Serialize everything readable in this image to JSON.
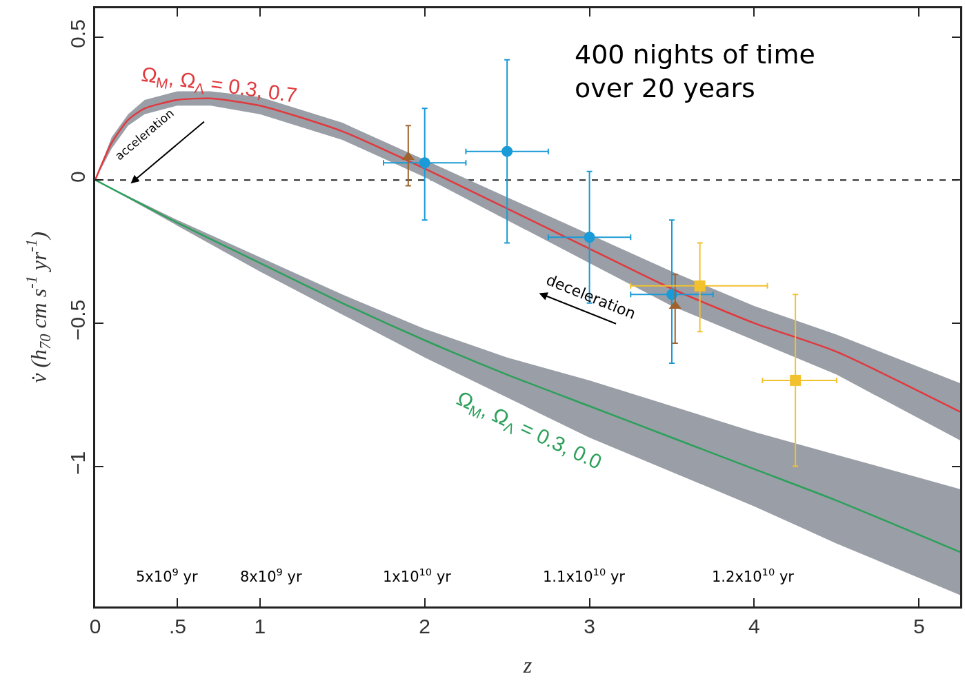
{
  "chart_data": {
    "type": "line",
    "title": "400 nights of time over 20 years",
    "xlabel": "z",
    "ylabel": "v̇ (h$_{70}$ cm s$^{-1}$ yr$^{-1}$)",
    "xlim": [
      0,
      5.25
    ],
    "ylim": [
      -1.49,
      0.6
    ],
    "xticks": [
      0,
      {
        "value": 0.5,
        "label": ".5"
      },
      1,
      2,
      3,
      4,
      5
    ],
    "yticks": [
      {
        "value": -1,
        "label": "−1"
      },
      {
        "value": -0.5,
        "label": "−0.5"
      },
      0,
      0.5
    ],
    "grid": false,
    "ref_lines": [
      {
        "axis": "y",
        "value": 0,
        "label": null,
        "color": "#222222",
        "line_style": "dashed"
      }
    ],
    "series": [
      {
        "color": "#e0393e",
        "x": [
          0,
          0.1,
          0.2,
          0.3,
          0.5,
          0.7,
          1.0,
          1.5,
          2.0,
          3.0,
          3.5,
          4.0,
          4.5,
          5.25
        ],
        "values": [
          0,
          0.13,
          0.21,
          0.25,
          0.28,
          0.285,
          0.26,
          0.17,
          0.04,
          -0.24,
          -0.38,
          -0.5,
          -0.6,
          -0.81
        ],
        "lower": [
          0,
          0.11,
          0.19,
          0.23,
          0.26,
          0.26,
          0.23,
          0.14,
          0.01,
          -0.29,
          -0.44,
          -0.56,
          -0.68,
          -0.91
        ],
        "upper": [
          0,
          0.15,
          0.23,
          0.28,
          0.31,
          0.31,
          0.29,
          0.2,
          0.07,
          -0.19,
          -0.32,
          -0.44,
          -0.54,
          -0.71
        ]
      },
      {
        "color": "#2ca05a",
        "x": [
          0,
          0.5,
          1.0,
          1.5,
          2.0,
          2.5,
          3.0,
          3.5,
          4.0,
          4.5,
          5.25
        ],
        "values": [
          0,
          -0.15,
          -0.29,
          -0.43,
          -0.56,
          -0.68,
          -0.79,
          -0.9,
          -1.01,
          -1.12,
          -1.3
        ],
        "lower": [
          0,
          -0.16,
          -0.32,
          -0.47,
          -0.62,
          -0.76,
          -0.9,
          -1.02,
          -1.14,
          -1.27,
          -1.45
        ],
        "upper": [
          0,
          -0.14,
          -0.27,
          -0.4,
          -0.52,
          -0.62,
          -0.7,
          -0.79,
          -0.88,
          -0.96,
          -1.08
        ]
      },
      {
        "type": "scatter",
        "color": "#1a9ad6",
        "marker": "circle",
        "x": [
          2.0,
          2.5,
          3.0,
          3.5
        ],
        "values": [
          0.06,
          0.1,
          -0.2,
          -0.4
        ],
        "errors": [
          [
            -0.14,
            0.25
          ],
          [
            -0.22,
            0.42
          ],
          [
            -0.43,
            0.03
          ],
          [
            -0.64,
            -0.14
          ]
        ],
        "xerrors": [
          [
            1.75,
            2.25
          ],
          [
            2.25,
            2.75
          ],
          [
            2.75,
            3.25
          ],
          [
            3.25,
            3.75
          ]
        ]
      },
      {
        "type": "scatter",
        "color": "#a0622d",
        "marker": "triangle",
        "x": [
          1.9,
          3.52
        ],
        "values": [
          0.08,
          -0.44
        ],
        "errors": [
          [
            -0.02,
            0.19
          ],
          [
            -0.57,
            -0.33
          ]
        ]
      },
      {
        "type": "scatter",
        "color": "#f2c12e",
        "marker": "square",
        "x": [
          3.67,
          4.25
        ],
        "values": [
          -0.37,
          -0.7
        ],
        "errors": [
          [
            -0.53,
            -0.22
          ],
          [
            -1.0,
            -0.4
          ]
        ],
        "xerrors": [
          [
            3.25,
            4.08
          ],
          [
            4.05,
            4.5
          ]
        ]
      }
    ],
    "annotations": [
      "Ω$_{M}$, Ω$_{Λ}$ = 0.3, 0.7",
      "Ω$_{M}$, Ω$_{Λ}$ = 0.3, 0.0",
      "acceleration",
      "deceleration",
      "5x10$^{9}$ yr",
      "8x10$^{9}$ yr",
      "1x10$^{10}$ yr",
      "1.1x10$^{10}$ yr",
      "1.2x10$^{10}$ yr"
    ]
  }
}
